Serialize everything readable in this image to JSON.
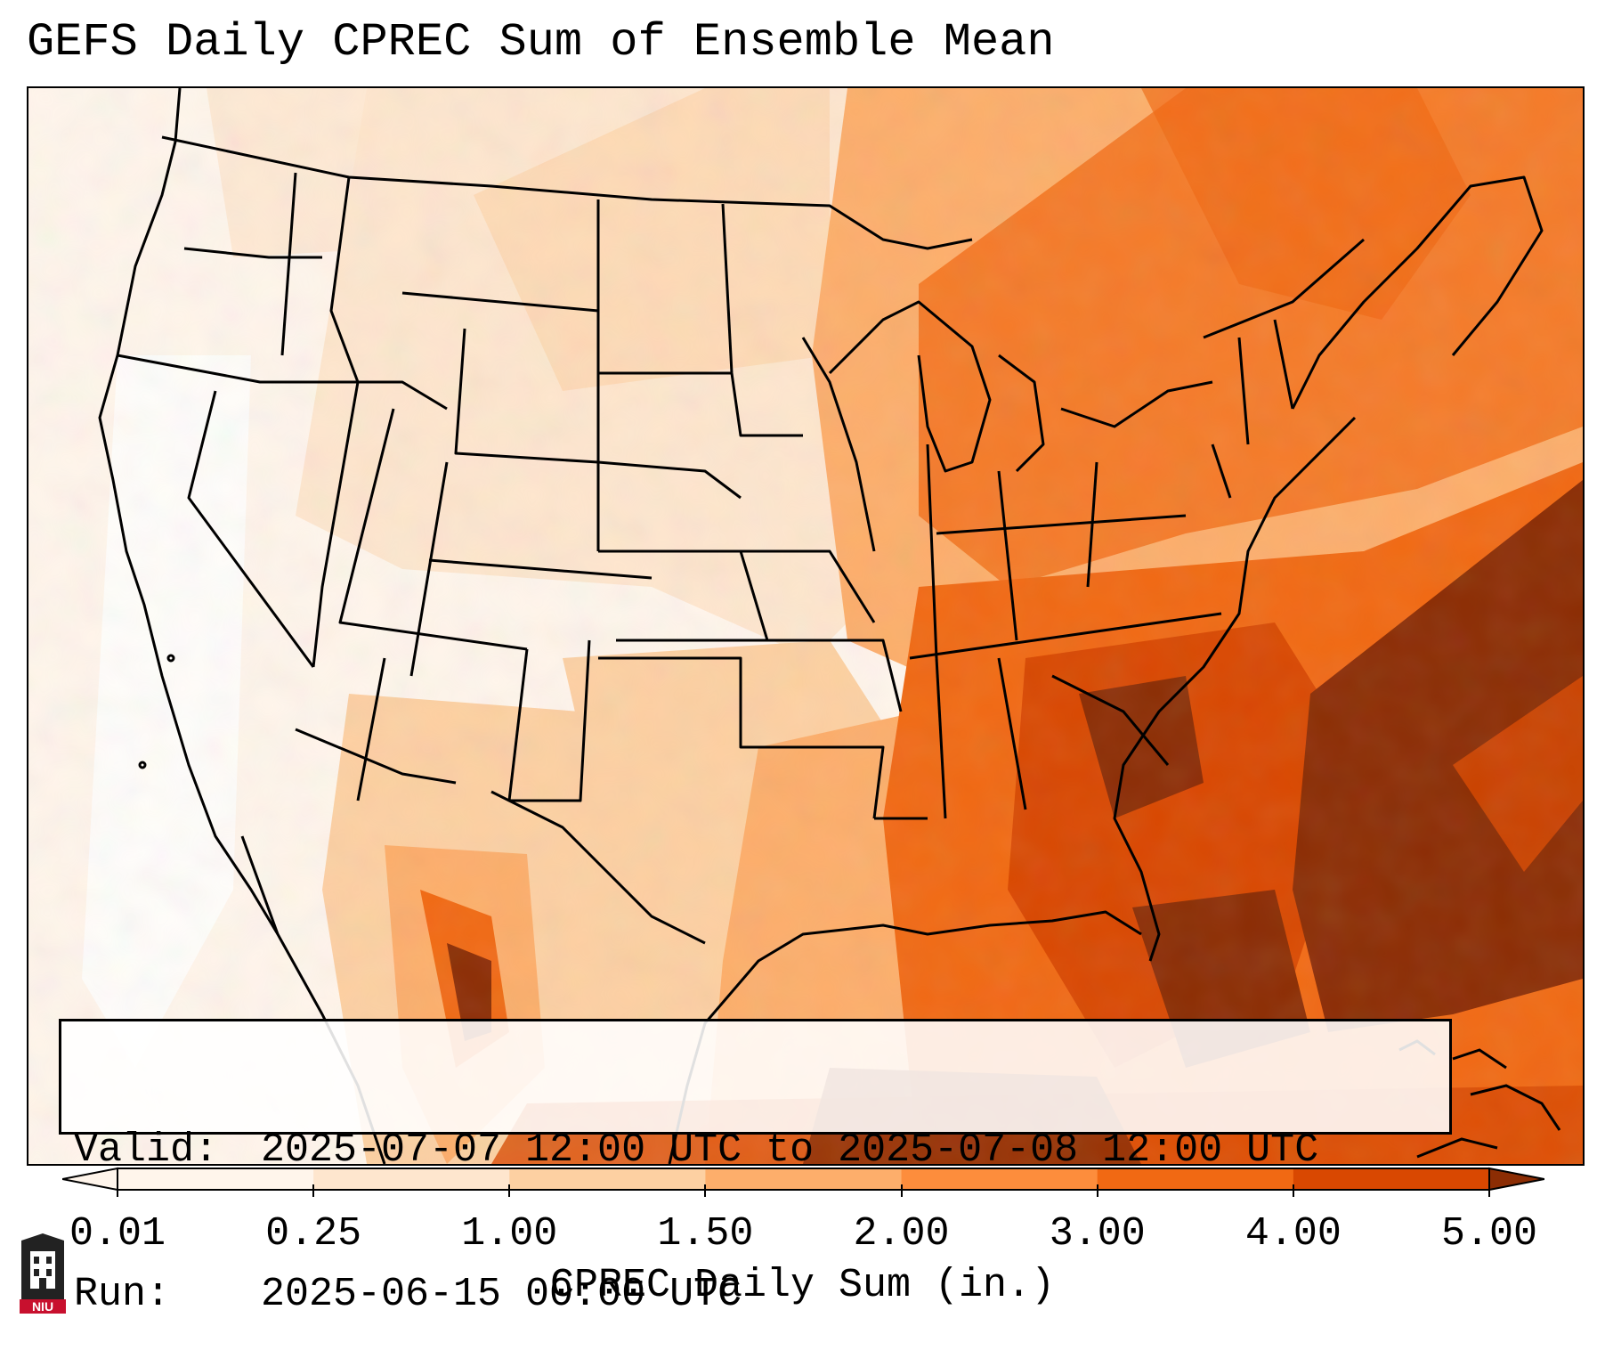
{
  "title": "GEFS Daily CPREC Sum of Ensemble Mean",
  "info": {
    "valid_label": "Valid:",
    "valid_value": "2025-07-07 12:00 UTC to 2025-07-08 12:00 UTC",
    "run_label": "Run:",
    "run_value": "2025-06-15 00:00 UTC"
  },
  "colorbar": {
    "label": "CPREC Daily Sum (in.)",
    "ticks": [
      "0.01",
      "0.25",
      "1.00",
      "1.50",
      "2.00",
      "3.00",
      "4.00",
      "5.00"
    ],
    "colors": [
      "#fff5eb",
      "#fee6ce",
      "#fdd0a2",
      "#fdae6b",
      "#fd8d3c",
      "#f16913",
      "#d94801",
      "#8c2d04"
    ],
    "extend": "both"
  },
  "map": {
    "projection": "lambert-conformal",
    "region": "CONUS",
    "colormap": "oranges",
    "borders": [
      "states",
      "countries",
      "coastlines"
    ]
  },
  "logo": {
    "text": "NIU",
    "icon": "niu-castle-logo"
  }
}
